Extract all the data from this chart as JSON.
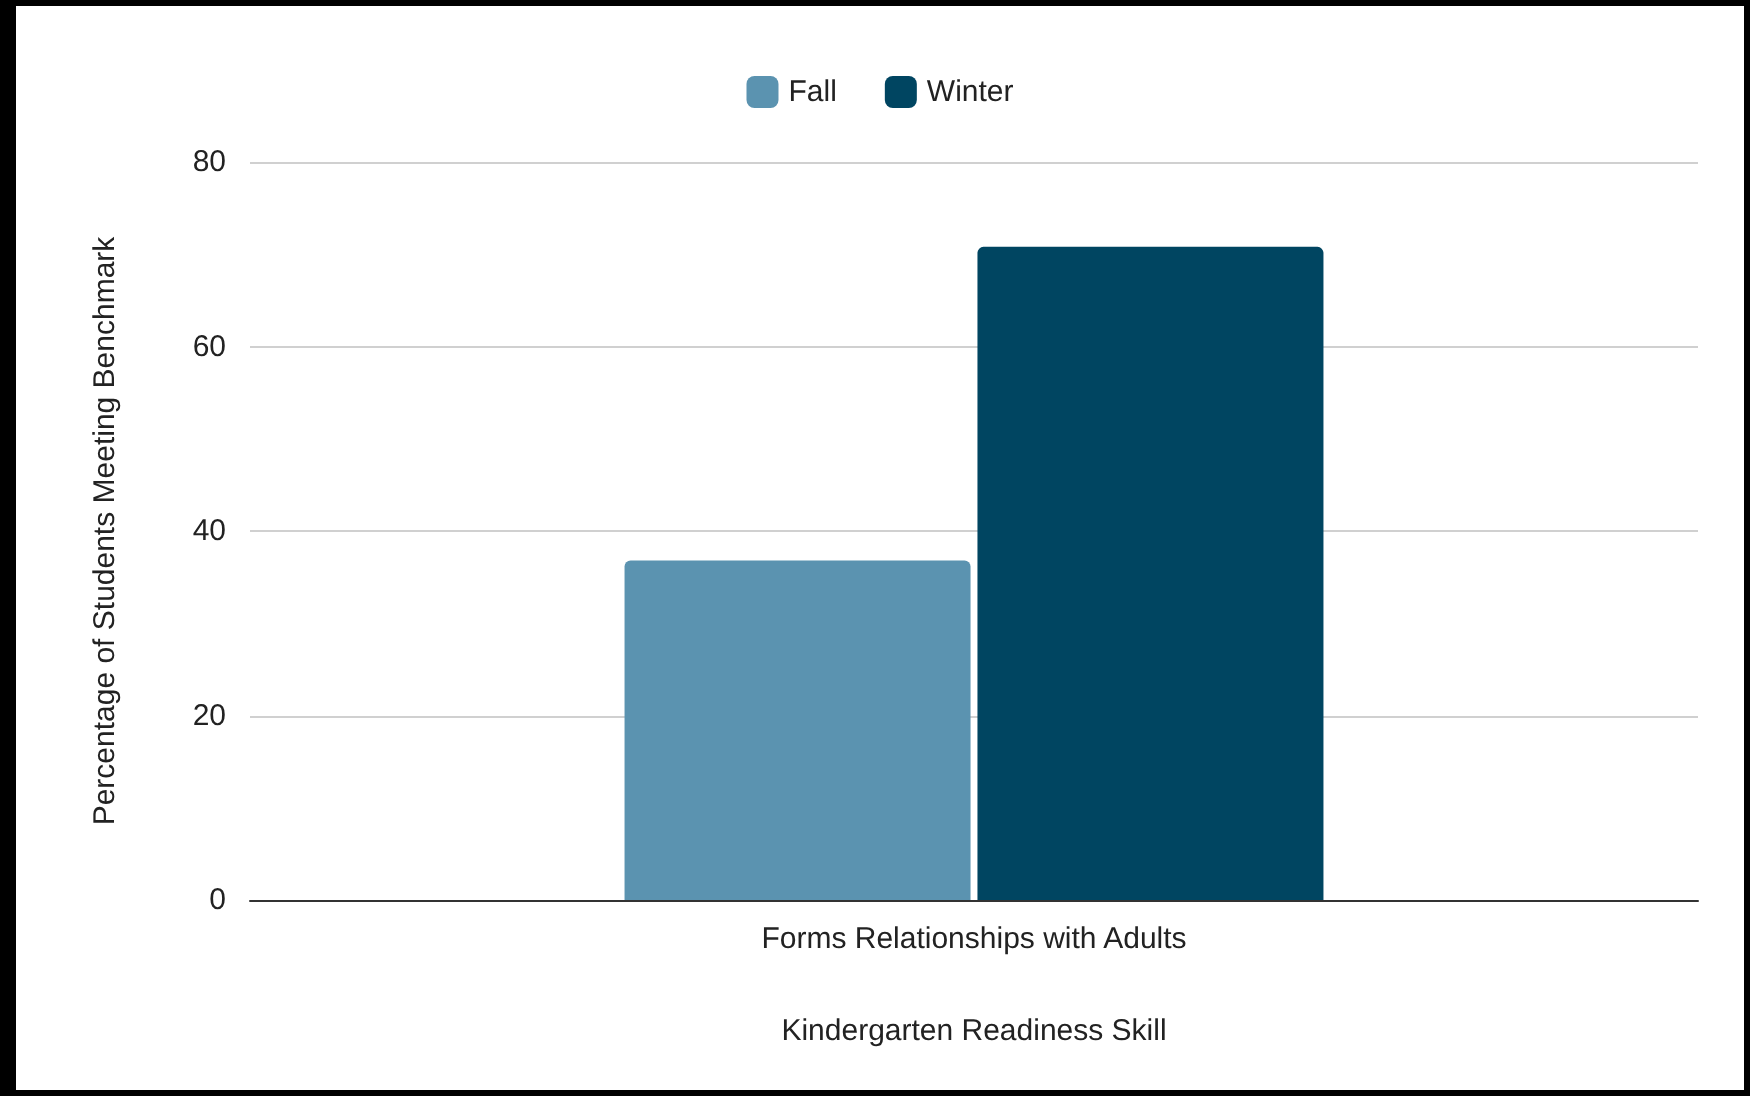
{
  "chart_data": {
    "type": "bar",
    "xlabel": "Kindergarten Readiness Skill",
    "ylabel": "Percentage of Students Meeting Benchmark",
    "categories": [
      "Forms Relationships with Adults"
    ],
    "series": [
      {
        "name": "Fall",
        "color": "#5b93b0",
        "values": [
          36.8
        ]
      },
      {
        "name": "Winter",
        "color": "#004561",
        "values": [
          70.8
        ]
      }
    ],
    "ylim": [
      0,
      80
    ],
    "yticks": [
      0,
      20,
      40,
      60,
      80
    ],
    "grid": "y",
    "legend": "top"
  }
}
